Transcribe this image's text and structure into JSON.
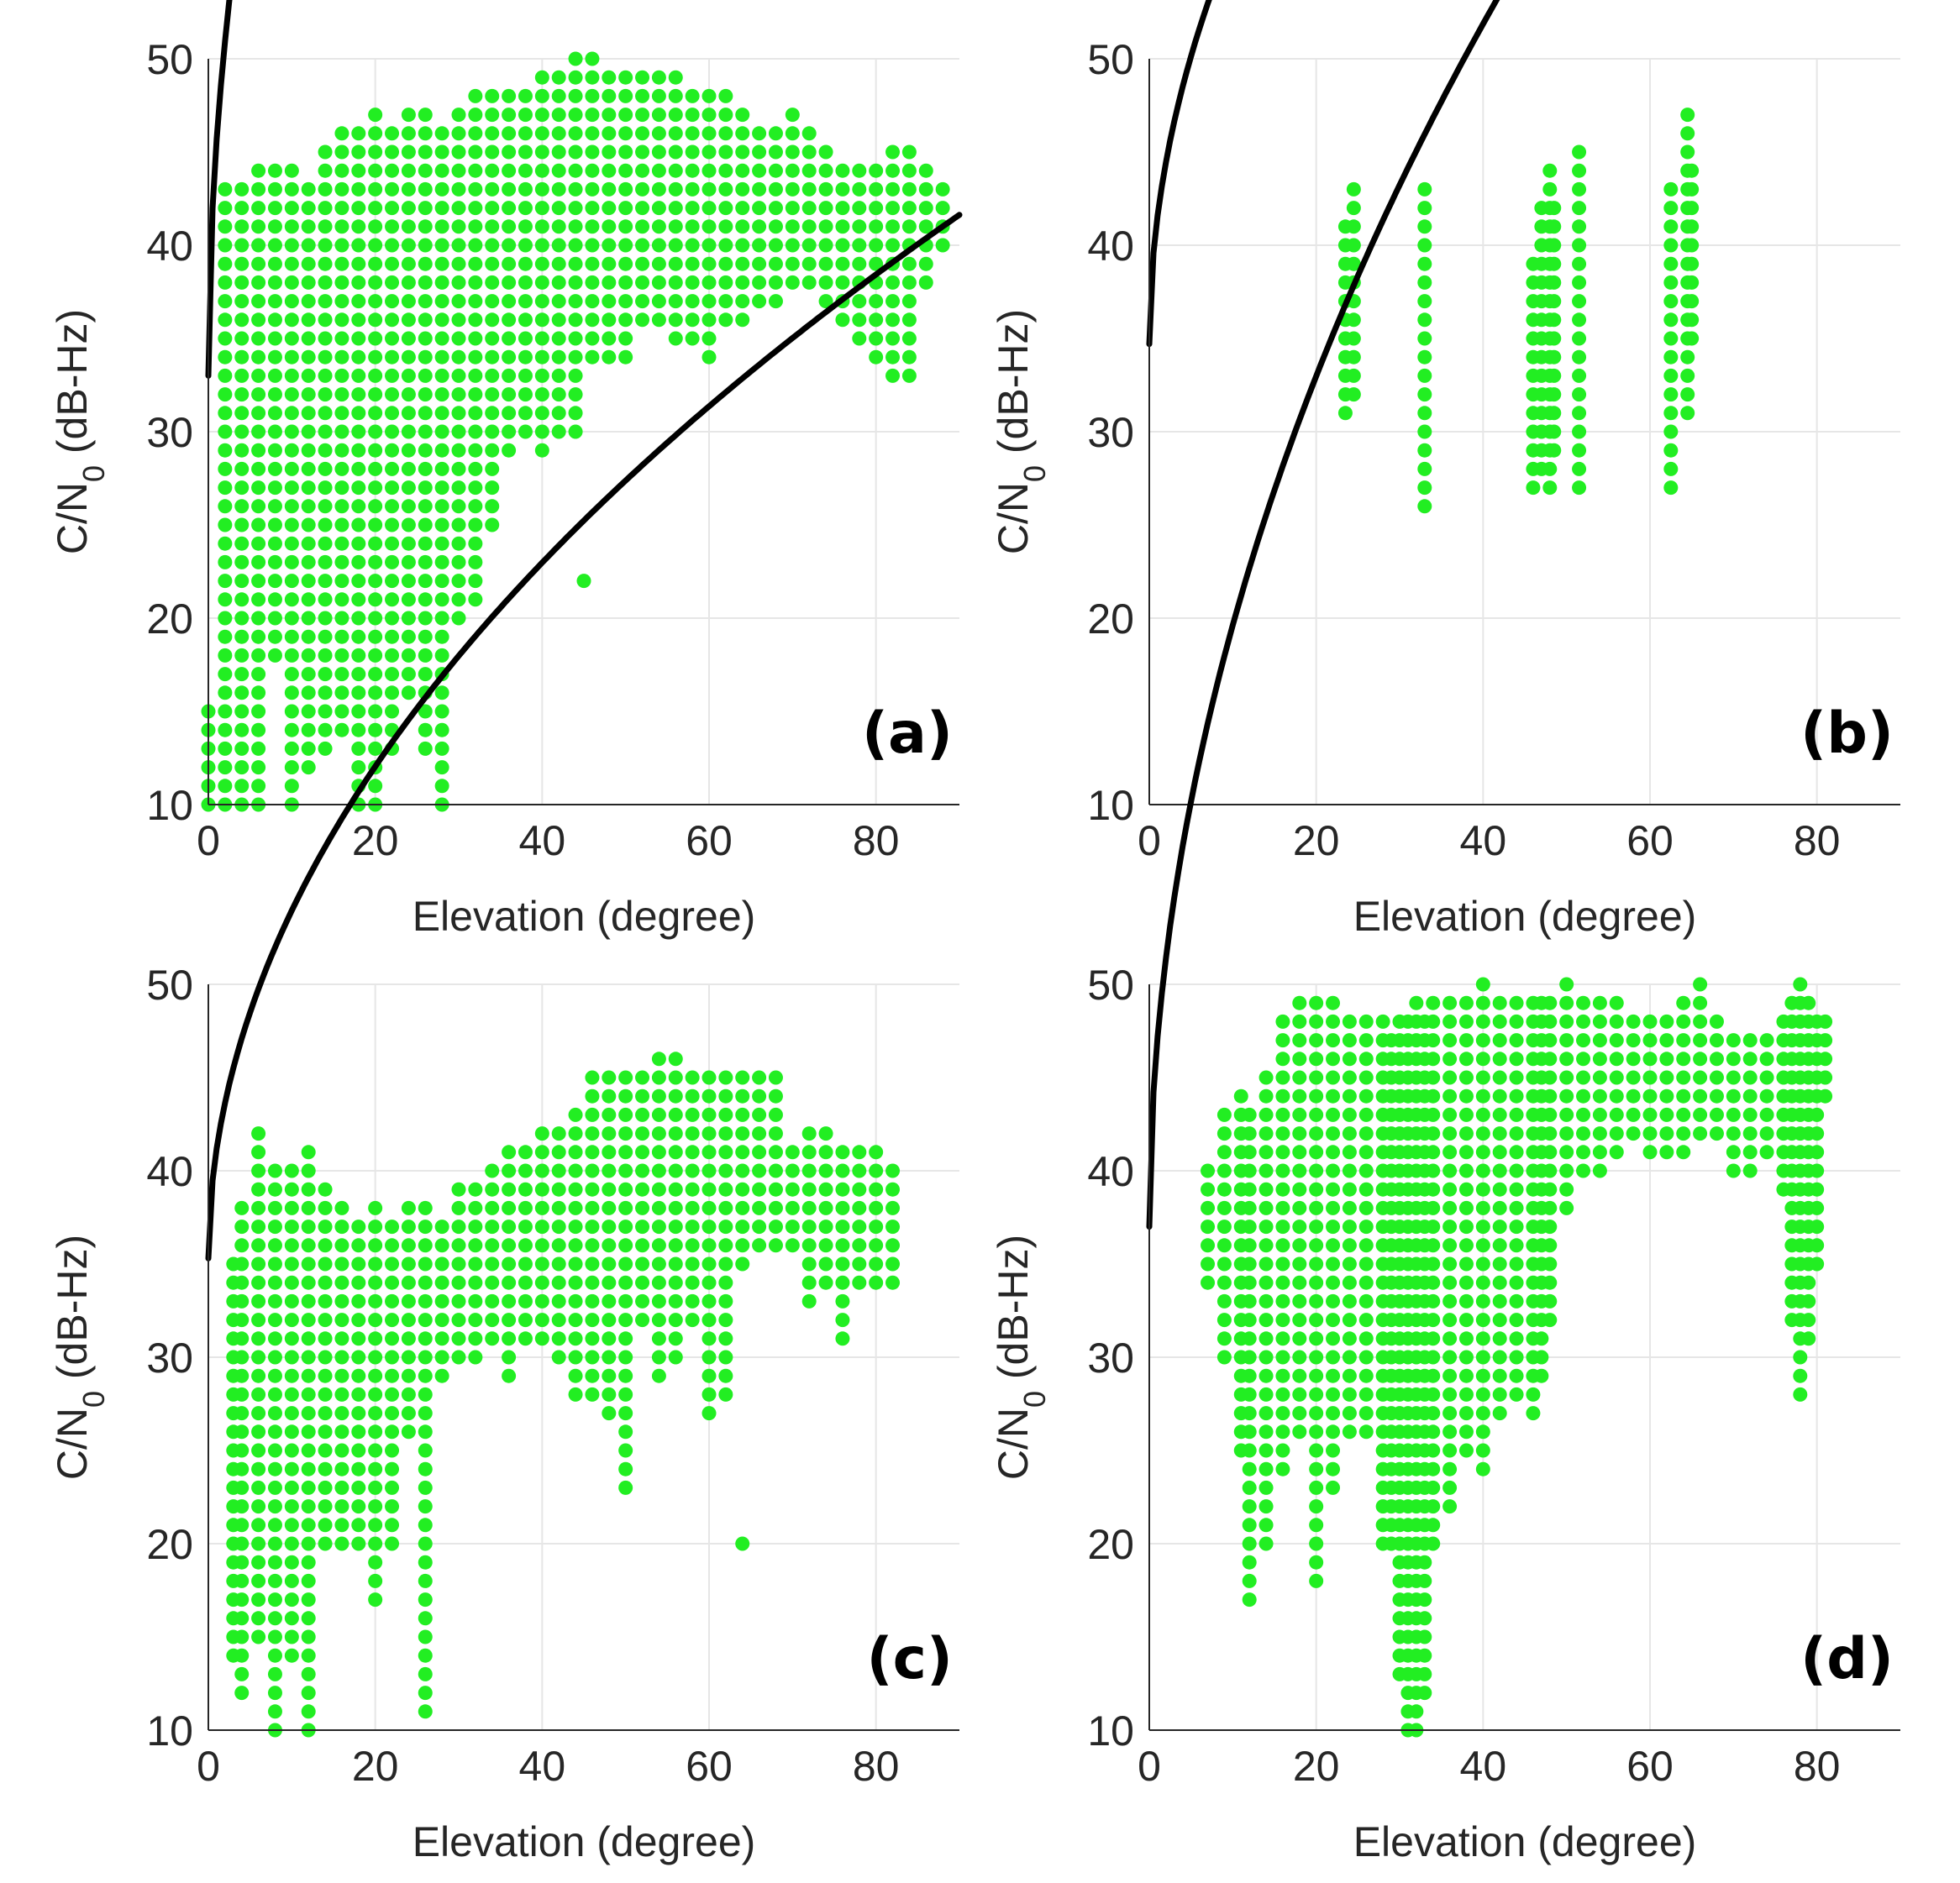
{
  "figure": {
    "colors": {
      "points": "#22ee22",
      "fit": "#000000",
      "grid": "#e6e6e6",
      "axis": "#262626"
    }
  },
  "chart_data": [
    {
      "type": "scatter",
      "panel": "(a)",
      "xlabel": "Elevation (degree)",
      "ylabel_prefix": "C/N",
      "ylabel_sub": "0",
      "ylabel_suffix": " (dB-Hz)",
      "xlim": [
        0,
        90
      ],
      "ylim": [
        10,
        50
      ],
      "xticks": [
        0,
        20,
        40,
        60,
        80
      ],
      "yticks": [
        10,
        20,
        30,
        40,
        50
      ],
      "grid": true,
      "fit": {
        "name": "fitted curve",
        "a": 33.0,
        "b": 12.7,
        "c": 0.5
      },
      "scatter_columns": [
        [
          0,
          10,
          15
        ],
        [
          2,
          10,
          43
        ],
        [
          4,
          10,
          43
        ],
        [
          6,
          10,
          44
        ],
        [
          8,
          18,
          44
        ],
        [
          10,
          10,
          44
        ],
        [
          12,
          12,
          43
        ],
        [
          14,
          13,
          45
        ],
        [
          16,
          14,
          46
        ],
        [
          18,
          10,
          46
        ],
        [
          20,
          10,
          47
        ],
        [
          22,
          13,
          46
        ],
        [
          24,
          16,
          47
        ],
        [
          26,
          13,
          47
        ],
        [
          28,
          10,
          46
        ],
        [
          30,
          20,
          47
        ],
        [
          32,
          21,
          48
        ],
        [
          34,
          25,
          48
        ],
        [
          36,
          29,
          48
        ],
        [
          38,
          30,
          48
        ],
        [
          40,
          29,
          49
        ],
        [
          42,
          30,
          49
        ],
        [
          44,
          30,
          50
        ],
        [
          46,
          34,
          50
        ],
        [
          48,
          34,
          49
        ],
        [
          50,
          34,
          49
        ],
        [
          52,
          36,
          49
        ],
        [
          54,
          36,
          49
        ],
        [
          56,
          35,
          49
        ],
        [
          58,
          35,
          48
        ],
        [
          60,
          34,
          48
        ],
        [
          62,
          36,
          48
        ],
        [
          64,
          36,
          47
        ],
        [
          66,
          37,
          46
        ],
        [
          68,
          37,
          46
        ],
        [
          70,
          38,
          47
        ],
        [
          72,
          38,
          46
        ],
        [
          74,
          37,
          45
        ],
        [
          76,
          36,
          44
        ],
        [
          78,
          35,
          44
        ],
        [
          80,
          34,
          44
        ],
        [
          82,
          33,
          45
        ],
        [
          84,
          33,
          45
        ],
        [
          86,
          38,
          44
        ],
        [
          88,
          40,
          43
        ]
      ],
      "scatter_points": [
        [
          45,
          22
        ]
      ]
    },
    {
      "type": "scatter",
      "panel": "(b)",
      "xlabel": "Elevation (degree)",
      "ylabel_prefix": "C/N",
      "ylabel_sub": "0",
      "ylabel_suffix": " (dB-Hz)",
      "xlim": [
        0,
        90
      ],
      "ylim": [
        10,
        50
      ],
      "xticks": [
        0,
        20,
        40,
        60,
        80
      ],
      "yticks": [
        10,
        20,
        30,
        40,
        50
      ],
      "grid": true,
      "fit": {
        "name": "fitted curve",
        "a": 34.7,
        "b": 6.9,
        "c": 0.5
      },
      "scatter_columns": [
        [
          23.5,
          31,
          41
        ],
        [
          24.5,
          32,
          43
        ],
        [
          33,
          26,
          43
        ],
        [
          46,
          27,
          39
        ],
        [
          47,
          28,
          42
        ],
        [
          48,
          27,
          44
        ],
        [
          48.5,
          29,
          42
        ],
        [
          51.5,
          27,
          45
        ],
        [
          62.5,
          27,
          43
        ],
        [
          64.5,
          31,
          47
        ],
        [
          65,
          35,
          44
        ]
      ],
      "scatter_points": []
    },
    {
      "type": "scatter",
      "panel": "(c)",
      "xlabel": "Elevation (degree)",
      "ylabel_prefix": "C/N",
      "ylabel_sub": "0",
      "ylabel_suffix": " (dB-Hz)",
      "xlim": [
        0,
        90
      ],
      "ylim": [
        10,
        50
      ],
      "xticks": [
        0,
        20,
        40,
        60,
        80
      ],
      "yticks": [
        10,
        20,
        30,
        40,
        50
      ],
      "grid": true,
      "fit": {
        "name": "fitted curve",
        "a": 35.3,
        "b": 5.9,
        "c": 0.5
      },
      "scatter_columns": [
        [
          3,
          14,
          35
        ],
        [
          4,
          12,
          38
        ],
        [
          6,
          15,
          42
        ],
        [
          8,
          10,
          40
        ],
        [
          10,
          14,
          40
        ],
        [
          12,
          10,
          41
        ],
        [
          14,
          20,
          39
        ],
        [
          16,
          20,
          38
        ],
        [
          18,
          20,
          37
        ],
        [
          20,
          17,
          38
        ],
        [
          22,
          20,
          37
        ],
        [
          24,
          26,
          38
        ],
        [
          26,
          11,
          38
        ],
        [
          28,
          29,
          37
        ],
        [
          30,
          30,
          39
        ],
        [
          32,
          30,
          39
        ],
        [
          34,
          31,
          40
        ],
        [
          36,
          29,
          41
        ],
        [
          38,
          31,
          41
        ],
        [
          40,
          31,
          42
        ],
        [
          42,
          30,
          42
        ],
        [
          44,
          28,
          43
        ],
        [
          46,
          28,
          45
        ],
        [
          48,
          27,
          45
        ],
        [
          50,
          23,
          45
        ],
        [
          52,
          32,
          45
        ],
        [
          54,
          29,
          46
        ],
        [
          56,
          30,
          46
        ],
        [
          58,
          32,
          45
        ],
        [
          60,
          27,
          45
        ],
        [
          62,
          28,
          45
        ],
        [
          64,
          35,
          45
        ],
        [
          66,
          36,
          45
        ],
        [
          68,
          36,
          45
        ],
        [
          70,
          36,
          41
        ],
        [
          72,
          33,
          42
        ],
        [
          74,
          34,
          42
        ],
        [
          76,
          31,
          41
        ],
        [
          78,
          34,
          41
        ],
        [
          80,
          34,
          41
        ],
        [
          82,
          34,
          40
        ]
      ],
      "scatter_points": [
        [
          64,
          20
        ]
      ]
    },
    {
      "type": "scatter",
      "panel": "(d)",
      "xlabel": "Elevation (degree)",
      "ylabel_prefix": "C/N",
      "ylabel_sub": "0",
      "ylabel_suffix": " (dB-Hz)",
      "xlim": [
        0,
        90
      ],
      "ylim": [
        10,
        50
      ],
      "xticks": [
        0,
        20,
        40,
        60,
        80
      ],
      "yticks": [
        10,
        20,
        30,
        40,
        50
      ],
      "grid": true,
      "fit": {
        "name": "fitted curve",
        "a": 37.0,
        "b": 10.2,
        "c": 0.5
      },
      "scatter_columns": [
        [
          7,
          34,
          40
        ],
        [
          9,
          30,
          43
        ],
        [
          11,
          25,
          44
        ],
        [
          12,
          17,
          43
        ],
        [
          14,
          20,
          45
        ],
        [
          16,
          24,
          48
        ],
        [
          18,
          26,
          49
        ],
        [
          20,
          18,
          49
        ],
        [
          22,
          23,
          49
        ],
        [
          24,
          26,
          48
        ],
        [
          26,
          26,
          48
        ],
        [
          28,
          20,
          48
        ],
        [
          29,
          20,
          47
        ],
        [
          30,
          13,
          48
        ],
        [
          31,
          10,
          48
        ],
        [
          32,
          10,
          49
        ],
        [
          33,
          12,
          48
        ],
        [
          34,
          20,
          49
        ],
        [
          36,
          22,
          49
        ],
        [
          38,
          25,
          49
        ],
        [
          40,
          24,
          50
        ],
        [
          42,
          27,
          49
        ],
        [
          44,
          28,
          49
        ],
        [
          46,
          27,
          49
        ],
        [
          47,
          29,
          49
        ],
        [
          48,
          32,
          49
        ],
        [
          50,
          38,
          50
        ],
        [
          52,
          40,
          49
        ],
        [
          54,
          40,
          49
        ],
        [
          56,
          41,
          49
        ],
        [
          58,
          42,
          48
        ],
        [
          60,
          41,
          48
        ],
        [
          62,
          41,
          48
        ],
        [
          64,
          41,
          49
        ],
        [
          66,
          42,
          50
        ],
        [
          68,
          42,
          48
        ],
        [
          70,
          40,
          47
        ],
        [
          72,
          40,
          47
        ],
        [
          74,
          41,
          47
        ],
        [
          76,
          39,
          48
        ],
        [
          77,
          32,
          49
        ],
        [
          78,
          28,
          50
        ],
        [
          79,
          31,
          49
        ],
        [
          80,
          35,
          48
        ],
        [
          81,
          44,
          48
        ]
      ],
      "scatter_points": []
    }
  ]
}
